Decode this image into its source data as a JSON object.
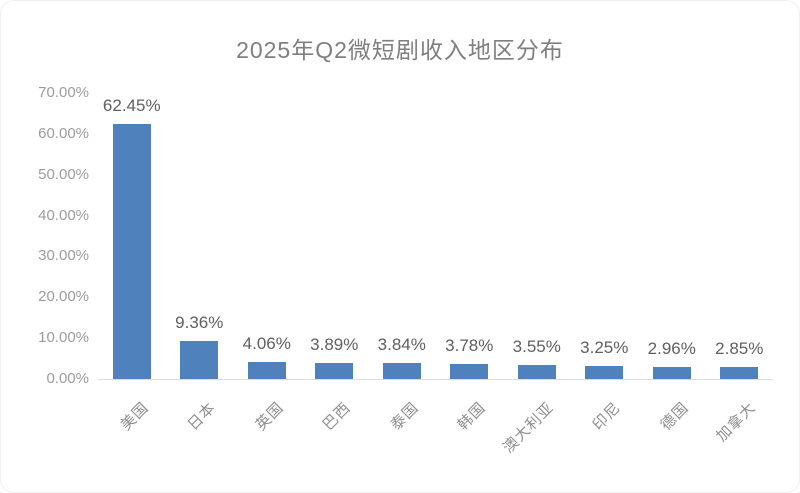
{
  "chart_title": "2025年Q2微短剧收入地区分布",
  "chart_data": {
    "type": "bar",
    "title": "2025年Q2微短剧收入地区分布",
    "categories": [
      "美国",
      "日本",
      "英国",
      "巴西",
      "泰国",
      "韩国",
      "澳大利亚",
      "印尼",
      "德国",
      "加拿大"
    ],
    "values": [
      62.45,
      9.36,
      4.06,
      3.89,
      3.84,
      3.78,
      3.55,
      3.25,
      2.96,
      2.85
    ],
    "data_labels": [
      "62.45%",
      "9.36%",
      "4.06%",
      "3.89%",
      "3.84%",
      "3.78%",
      "3.55%",
      "3.25%",
      "2.96%",
      "2.85%"
    ],
    "y_ticks": [
      {
        "label": "70.00%",
        "value": 70
      },
      {
        "label": "60.00%",
        "value": 60
      },
      {
        "label": "50.00%",
        "value": 50
      },
      {
        "label": "40.00%",
        "value": 40
      },
      {
        "label": "30.00%",
        "value": 30
      },
      {
        "label": "20.00%",
        "value": 20
      },
      {
        "label": "10.00%",
        "value": 10
      },
      {
        "label": "0.00%",
        "value": 0
      }
    ],
    "ylim": [
      0,
      70
    ],
    "xlabel": "",
    "ylabel": "",
    "grid": false,
    "legend_position": "none",
    "colors": {
      "bar": "#4f81bd",
      "title_text": "#7f7f7f",
      "axis_tick_text": "#9c9c9c",
      "data_label_text": "#606060",
      "category_text": "#8e8e8e",
      "axis_line": "#dcdcdc",
      "background": "#ffffff"
    }
  }
}
